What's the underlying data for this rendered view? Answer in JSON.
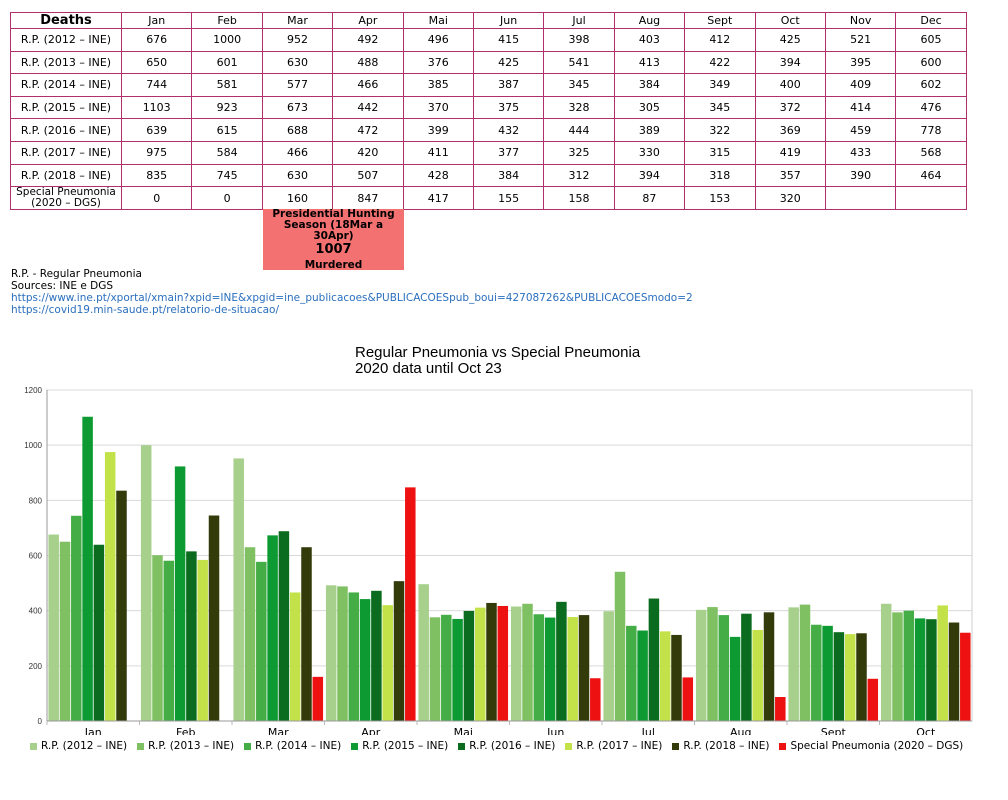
{
  "table": {
    "corner": "Deaths",
    "months": [
      "Jan",
      "Feb",
      "Mar",
      "Apr",
      "Mai",
      "Jun",
      "Jul",
      "Aug",
      "Sept",
      "Oct",
      "Nov",
      "Dec"
    ],
    "rows": [
      {
        "label": "R.P. (2012 – INE)",
        "values": [
          "676",
          "1000",
          "952",
          "492",
          "496",
          "415",
          "398",
          "403",
          "412",
          "425",
          "521",
          "605"
        ]
      },
      {
        "label": "R.P. (2013 – INE)",
        "values": [
          "650",
          "601",
          "630",
          "488",
          "376",
          "425",
          "541",
          "413",
          "422",
          "394",
          "395",
          "600"
        ]
      },
      {
        "label": "R.P. (2014 – INE)",
        "values": [
          "744",
          "581",
          "577",
          "466",
          "385",
          "387",
          "345",
          "384",
          "349",
          "400",
          "409",
          "602"
        ]
      },
      {
        "label": "R.P. (2015 – INE)",
        "values": [
          "1103",
          "923",
          "673",
          "442",
          "370",
          "375",
          "328",
          "305",
          "345",
          "372",
          "414",
          "476"
        ]
      },
      {
        "label": "R.P. (2016 – INE)",
        "values": [
          "639",
          "615",
          "688",
          "472",
          "399",
          "432",
          "444",
          "389",
          "322",
          "369",
          "459",
          "778"
        ]
      },
      {
        "label": "R.P. (2017 – INE)",
        "values": [
          "975",
          "584",
          "466",
          "420",
          "411",
          "377",
          "325",
          "330",
          "315",
          "419",
          "433",
          "568"
        ]
      },
      {
        "label": "R.P. (2018 – INE)",
        "values": [
          "835",
          "745",
          "630",
          "507",
          "428",
          "384",
          "312",
          "394",
          "318",
          "357",
          "390",
          "464"
        ]
      },
      {
        "label": "Special Pneumonia (2020 – DGS)",
        "values": [
          "0",
          "0",
          "160",
          "847",
          "417",
          "155",
          "158",
          "87",
          "153",
          "320",
          "",
          ""
        ]
      }
    ]
  },
  "annotation": {
    "line1": "Presidential Hunting",
    "line2": "Season (18Mar a 30Apr)",
    "number": "1007",
    "word": "Murdered",
    "color": "#f47171"
  },
  "notes": {
    "line1": "R.P. - Regular Pneumonia",
    "line2": "Sources: INE e DGS",
    "link1": "https://www.ine.pt/xportal/xmain?xpid=INE&xpgid=ine_publicacoes&PUBLICACOESpub_boui=427087262&PUBLICACOESmodo=2",
    "link2": "https://covid19.min-saude.pt/relatorio-de-situacao/"
  },
  "chart_data": {
    "type": "bar",
    "title": "Regular Pneumonia vs Special Pneumonia",
    "subtitle": "2020 data until Oct 23",
    "xlabel": "",
    "ylabel": "",
    "ylim": [
      0,
      1200
    ],
    "yticks": [
      "0",
      "200",
      "400",
      "600",
      "800",
      "1000",
      "1200"
    ],
    "grid": true,
    "legend_position": "bottom",
    "categories": [
      "Jan",
      "Feb",
      "Mar",
      "Apr",
      "Mai",
      "Jun",
      "Jul",
      "Aug",
      "Sept",
      "Oct"
    ],
    "series": [
      {
        "name": "R.P. (2012 – INE)",
        "color": "#a8d08d",
        "values": [
          676,
          1000,
          952,
          492,
          496,
          415,
          398,
          403,
          412,
          425
        ]
      },
      {
        "name": "R.P. (2013 – INE)",
        "color": "#7fc063",
        "values": [
          650,
          601,
          630,
          488,
          376,
          425,
          541,
          413,
          422,
          394
        ]
      },
      {
        "name": "R.P. (2014 – INE)",
        "color": "#45ad45",
        "values": [
          744,
          581,
          577,
          466,
          385,
          387,
          345,
          384,
          349,
          400
        ]
      },
      {
        "name": "R.P. (2015 – INE)",
        "color": "#0e9a32",
        "values": [
          1103,
          923,
          673,
          442,
          370,
          375,
          328,
          305,
          345,
          372
        ]
      },
      {
        "name": "R.P. (2016 – INE)",
        "color": "#0b6b1e",
        "values": [
          639,
          615,
          688,
          472,
          399,
          432,
          444,
          389,
          322,
          369
        ]
      },
      {
        "name": "R.P. (2017 – INE)",
        "color": "#c3e24a",
        "values": [
          975,
          584,
          466,
          420,
          411,
          377,
          325,
          330,
          315,
          419
        ]
      },
      {
        "name": "R.P. (2018 – INE)",
        "color": "#333b0b",
        "values": [
          835,
          745,
          630,
          507,
          428,
          384,
          312,
          394,
          318,
          357
        ]
      },
      {
        "name": "Special Pneumonia (2020 – DGS)",
        "color": "#ee1111",
        "values": [
          0,
          0,
          160,
          847,
          417,
          155,
          158,
          87,
          153,
          320
        ]
      }
    ]
  }
}
